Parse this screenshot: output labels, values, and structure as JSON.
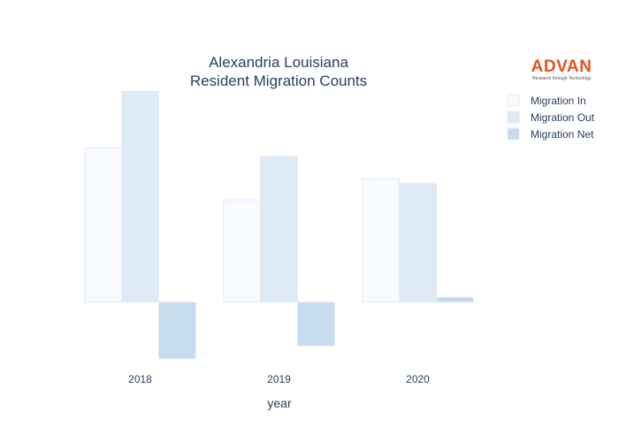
{
  "chart_data": {
    "type": "bar",
    "title_lines": [
      "Alexandria Louisiana",
      "Resident Migration Counts"
    ],
    "xlabel": "year",
    "ylabel": "",
    "categories": [
      "2018",
      "2019",
      "2020"
    ],
    "series": [
      {
        "name": "Migration In",
        "values": [
          1660,
          1100,
          1330
        ],
        "color": "#f7fbff"
      },
      {
        "name": "Migration Out",
        "values": [
          2270,
          1570,
          1280
        ],
        "color": "#deebf7"
      },
      {
        "name": "Migration Net",
        "values": [
          -610,
          -470,
          50
        ],
        "color": "#c6dbef"
      }
    ],
    "ylim": [
      -650,
      2300
    ],
    "grid": false,
    "legend_placement": "top-right"
  },
  "logo": {
    "word": "ADVAN",
    "tagline": "Research through Technology"
  }
}
